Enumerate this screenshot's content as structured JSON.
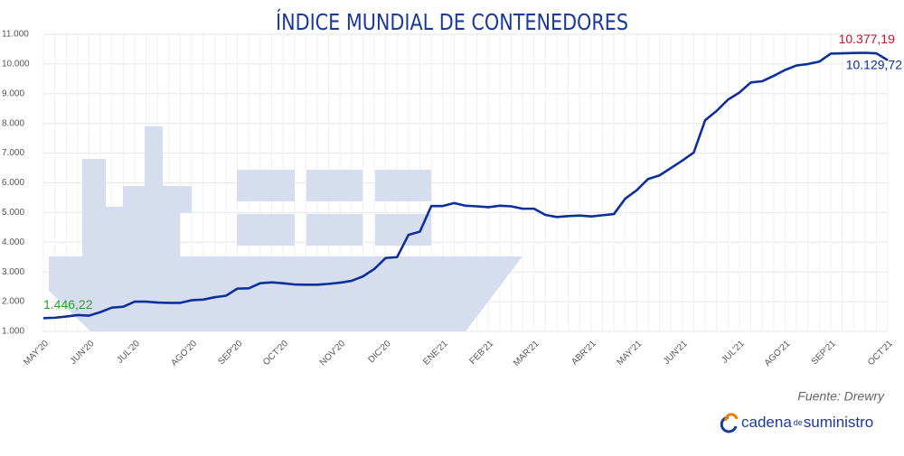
{
  "chart_data": {
    "type": "line",
    "title": "ÍNDICE MUNDIAL DE CONTENEDORES",
    "categories": [
      "MAY'20",
      null,
      null,
      null,
      "JUN'20",
      null,
      null,
      null,
      "JUL'20",
      null,
      null,
      null,
      null,
      "AGO'20",
      null,
      null,
      null,
      "SEP'20",
      null,
      null,
      null,
      "OCT'20",
      null,
      null,
      null,
      null,
      "NOV'20",
      null,
      null,
      null,
      "DIC'20",
      null,
      null,
      null,
      null,
      "ENE'21",
      null,
      null,
      null,
      "FEB'21",
      null,
      null,
      null,
      "MAR'21",
      null,
      null,
      null,
      null,
      "ABR'21",
      null,
      null,
      null,
      "MAY'21",
      null,
      null,
      null,
      "JUN'21",
      null,
      null,
      null,
      null,
      "JUL'21",
      null,
      null,
      null,
      "AGO'21",
      null,
      null,
      null,
      "SEP'21",
      null,
      null,
      null,
      null,
      "OCT'21"
    ],
    "series": [
      {
        "name": "Índice mundial de contenedores",
        "color": "#0d2f99",
        "values": [
          1446.22,
          1460,
          1500,
          1550,
          1530,
          1650,
          1800,
          1830,
          2000,
          2000,
          1970,
          1960,
          1960,
          2050,
          2070,
          2150,
          2200,
          2440,
          2450,
          2620,
          2650,
          2620,
          2580,
          2570,
          2570,
          2600,
          2640,
          2700,
          2850,
          3100,
          3470,
          3500,
          4250,
          4360,
          5220,
          5220,
          5320,
          5230,
          5210,
          5180,
          5230,
          5210,
          5130,
          5130,
          4920,
          4850,
          4880,
          4900,
          4870,
          4910,
          4950,
          5470,
          5750,
          6130,
          6250,
          6500,
          6750,
          7020,
          8110,
          8420,
          8800,
          9040,
          9380,
          9420,
          9600,
          9800,
          9950,
          10000,
          10080,
          10350,
          10360,
          10370,
          10377.19,
          10360,
          10129.72
        ],
        "value_labels": [
          "1.446,22",
          null,
          null,
          null,
          null,
          null,
          null,
          null,
          null,
          null,
          null,
          null,
          null,
          null,
          null,
          null,
          null,
          null,
          null,
          null,
          null,
          null,
          null,
          null,
          null,
          null,
          null,
          null,
          null,
          null,
          null,
          null,
          null,
          null,
          null,
          null,
          null,
          null,
          null,
          null,
          null,
          null,
          null,
          null,
          null,
          null,
          null,
          null,
          null,
          null,
          null,
          null,
          null,
          null,
          null,
          null,
          null,
          null,
          null,
          null,
          null,
          null,
          null,
          null,
          null,
          null,
          null,
          null,
          null,
          null,
          null,
          null,
          "10.377,19",
          null,
          "10.129,72"
        ]
      }
    ],
    "ylim": [
      1000,
      11000
    ],
    "yticks": [
      {
        "value": 1000,
        "label": "1.000"
      },
      {
        "value": 2000,
        "label": "2.000"
      },
      {
        "value": 3000,
        "label": "3.000"
      },
      {
        "value": 4000,
        "label": "4.000"
      },
      {
        "value": 5000,
        "label": "5.000"
      },
      {
        "value": 6000,
        "label": "6.000"
      },
      {
        "value": 7000,
        "label": "7.000"
      },
      {
        "value": 8000,
        "label": "8.000"
      },
      {
        "value": 9000,
        "label": "9.000"
      },
      {
        "value": 10000,
        "label": "10.000"
      },
      {
        "value": 11000,
        "label": "11.000"
      }
    ],
    "grid": true,
    "source": "Fuente: Drewry",
    "brand": {
      "first": "cadena",
      "middle": "de",
      "last": "suministro"
    }
  }
}
